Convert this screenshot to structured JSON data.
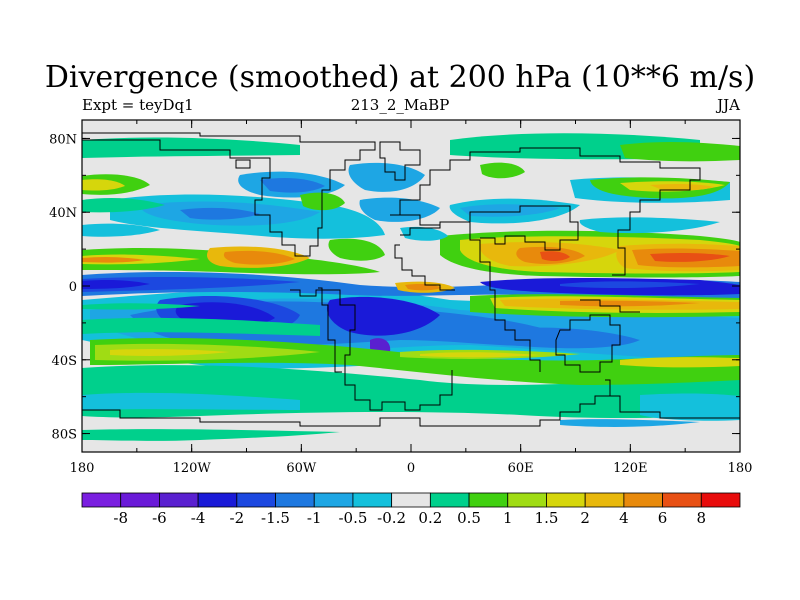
{
  "title": "Divergence (smoothed) at 200 hPa (10**6 m/s)",
  "left_label": "Expt = teyDq1",
  "center_label": "213_2_MaBP",
  "right_label": "JJA",
  "y_ticks": [
    {
      "label": "80N",
      "lat": 80
    },
    {
      "label": "40N",
      "lat": 40
    },
    {
      "label": "0",
      "lat": 0
    },
    {
      "label": "40S",
      "lat": -40
    },
    {
      "label": "80S",
      "lat": -80
    }
  ],
  "x_ticks": [
    {
      "label": "180",
      "lon": -180
    },
    {
      "label": "120W",
      "lon": -120
    },
    {
      "label": "60W",
      "lon": -60
    },
    {
      "label": "0",
      "lon": 0
    },
    {
      "label": "60E",
      "lon": 60
    },
    {
      "label": "120E",
      "lon": 120
    },
    {
      "label": "180",
      "lon": 180
    }
  ],
  "colorbar": {
    "colors": [
      "#7a1fe0",
      "#6a1ad8",
      "#5a20d0",
      "#1a1ad8",
      "#1c48e0",
      "#1e78e0",
      "#1ea6e4",
      "#14c0dc",
      "#e6e6e6",
      "#00d08c",
      "#40d010",
      "#a0dc14",
      "#d6d60c",
      "#e8b80c",
      "#e88a0c",
      "#e85014",
      "#e80c0c"
    ],
    "labels": [
      "-8",
      "-6",
      "-4",
      "-2",
      "-1.5",
      "-1",
      "-0.5",
      "-0.2",
      "0.2",
      "0.5",
      "1",
      "1.5",
      "2",
      "4",
      "6",
      "8"
    ]
  },
  "levels": {
    "neg8": "#7a1fe0",
    "neg4": "#5a20d0",
    "neg2": "#1a1ad8",
    "neg15": "#1c48e0",
    "neg1": "#1e78e0",
    "neg05": "#1ea6e4",
    "neg02": "#14c0dc",
    "zero": "#e6e6e6",
    "pos02": "#00d08c",
    "pos05": "#40d010",
    "pos1": "#a0dc14",
    "pos15": "#d6d60c",
    "pos2": "#e8b80c",
    "pos4": "#e88a0c",
    "pos6": "#e85014"
  }
}
